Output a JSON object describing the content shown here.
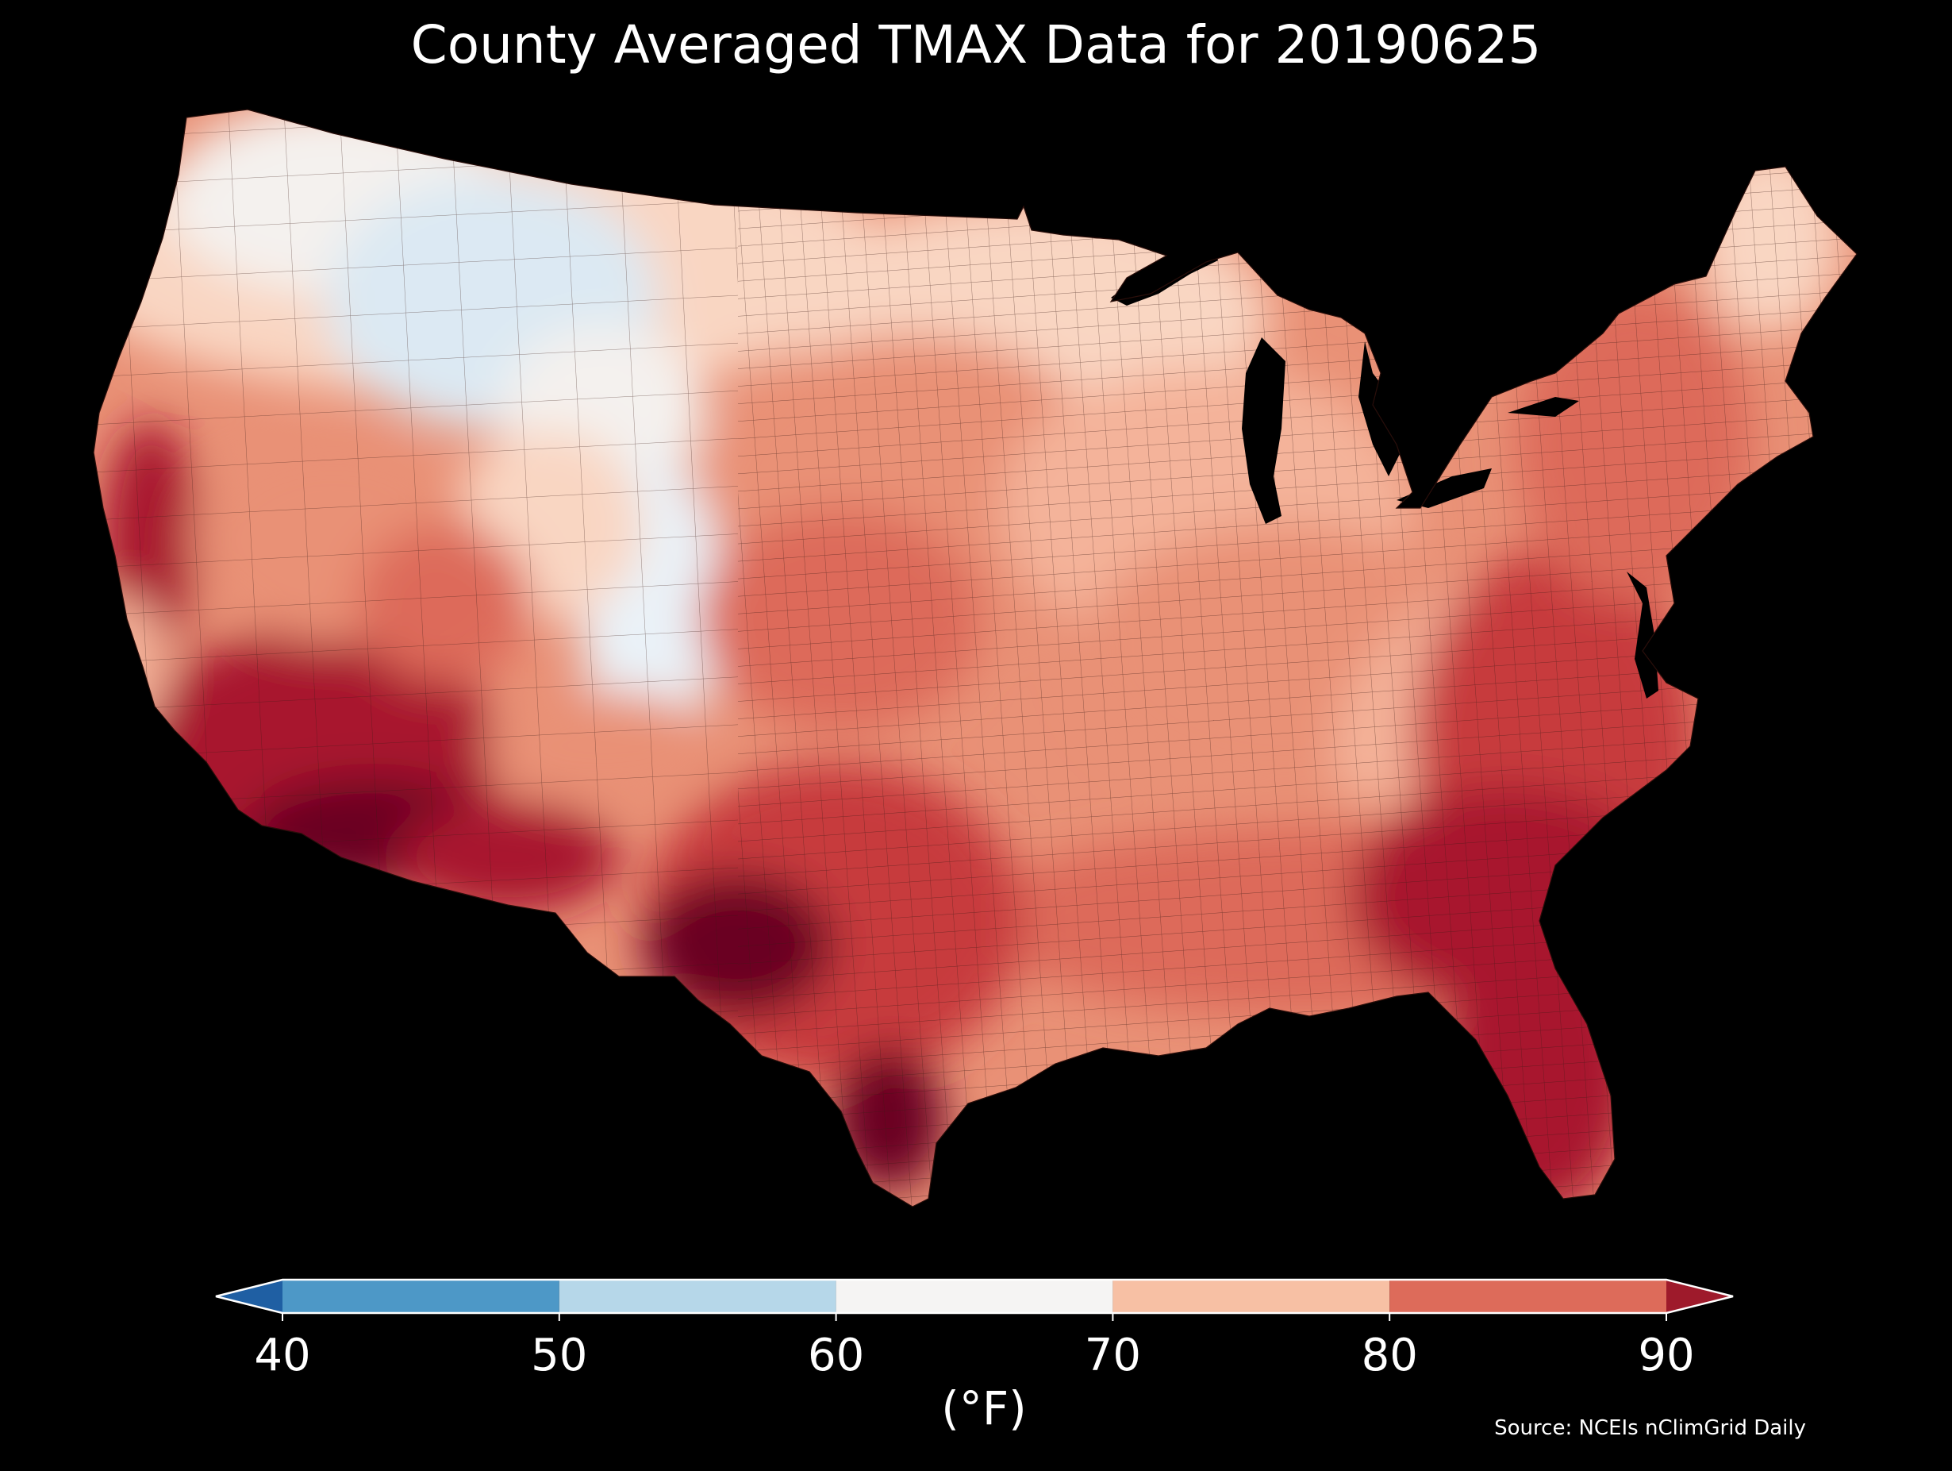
{
  "title": "County Averaged TMAX Data for 20190625",
  "colorbar": {
    "units": "(°F)",
    "ticks": [
      "40",
      "50",
      "60",
      "70",
      "80",
      "90"
    ],
    "bins": [
      {
        "range": [
          null,
          40
        ],
        "color": "#1f5fa3",
        "extend": "min"
      },
      {
        "range": [
          40,
          50
        ],
        "color": "#4d98c7"
      },
      {
        "range": [
          50,
          60
        ],
        "color": "#b6d7e9"
      },
      {
        "range": [
          60,
          70
        ],
        "color": "#f5f4f3"
      },
      {
        "range": [
          70,
          80
        ],
        "color": "#f7c0a4"
      },
      {
        "range": [
          80,
          90
        ],
        "color": "#dd6b5a"
      },
      {
        "range": [
          90,
          null
        ],
        "color": "#9e1a2b",
        "extend": "max"
      }
    ]
  },
  "source": "Source: NCEIs nClimGrid Daily",
  "map": {
    "region": "Contiguous United States counties",
    "variable": "TMAX",
    "date": "20190625",
    "land_palette": {
      "cool_light_blue": "#dce9f3",
      "near_white": "#f4f1ee",
      "pale_peach": "#f9d6c2",
      "light_salmon": "#f4b39a",
      "salmon": "#e99176",
      "coral": "#dd6b5a",
      "red": "#c73a3d",
      "crimson": "#a8182e",
      "dark_maroon": "#6b0420"
    },
    "water_color": "#000000",
    "border_color": "#3a1a14"
  }
}
